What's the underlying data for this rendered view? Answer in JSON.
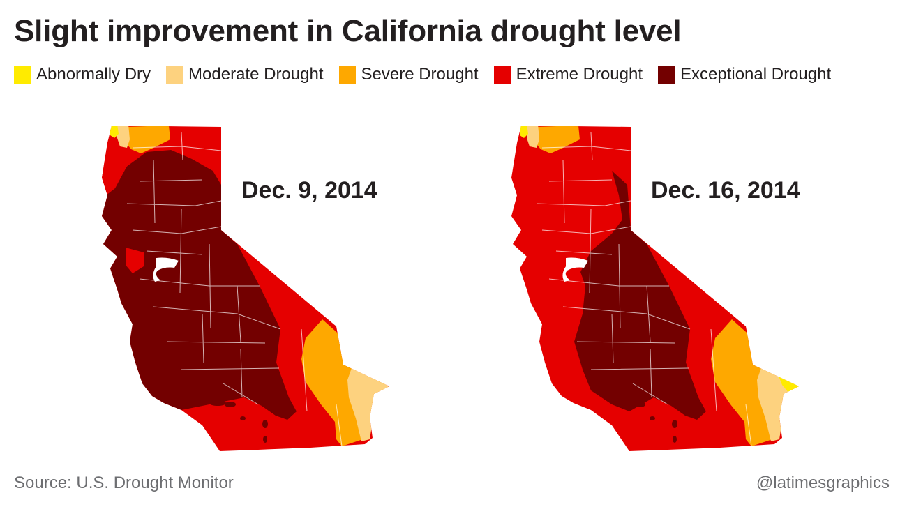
{
  "title": "Slight improvement in California drought level",
  "legend": [
    {
      "label": "Abnormally Dry",
      "color": "#ffeb00"
    },
    {
      "label": "Moderate Drought",
      "color": "#fdd27f"
    },
    {
      "label": "Severe Drought",
      "color": "#fea800"
    },
    {
      "label": "Extreme Drought",
      "color": "#e50000"
    },
    {
      "label": "Exceptional Drought",
      "color": "#730000"
    }
  ],
  "maps": {
    "left": {
      "date": "Dec. 9, 2014"
    },
    "right": {
      "date": "Dec. 16, 2014"
    }
  },
  "source": "Source: U.S. Drought Monitor",
  "credit": "@latimesgraphics"
}
